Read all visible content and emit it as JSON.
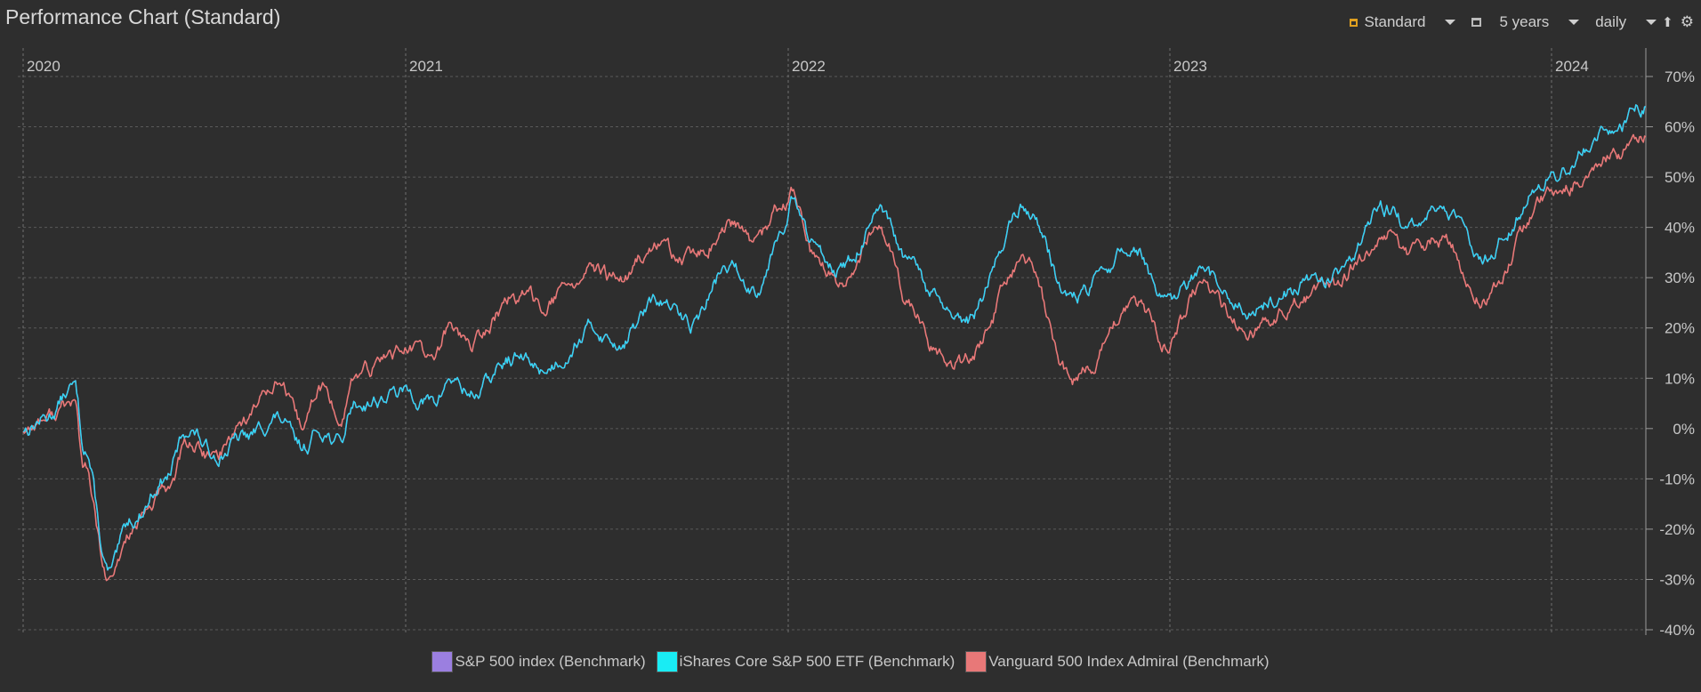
{
  "title": "Performance Chart (Standard)",
  "toolbar": {
    "chart_type_label": "Standard",
    "period_label": "5 years",
    "interval_label": "daily",
    "chart_type_icon": "chart-type-icon",
    "calendar_icon": "calendar-icon",
    "export_icon": "export-icon",
    "settings_icon": "gear-icon",
    "chart_type_icon_color": "#e0a020"
  },
  "chart_data": {
    "type": "line",
    "title": "Performance Chart (Standard)",
    "x_range": [
      "2020-01-01",
      "2024-03-31"
    ],
    "x_tick_labels": [
      "2020",
      "2021",
      "2022",
      "2023",
      "2024"
    ],
    "x_tick_dates": [
      "2020-01-01",
      "2021-01-01",
      "2022-01-01",
      "2023-01-01",
      "2024-01-01"
    ],
    "ylim": [
      -40,
      70
    ],
    "y_ticks": [
      -40,
      -30,
      -20,
      -10,
      0,
      10,
      20,
      30,
      40,
      50,
      60,
      70
    ],
    "y_tick_labels": [
      "-40%",
      "-30%",
      "-20%",
      "-10%",
      "0%",
      "10%",
      "20%",
      "30%",
      "40%",
      "50%",
      "60%",
      "70%"
    ],
    "y_axis_position": "right",
    "grid": true,
    "legend_position": "bottom-center",
    "series": [
      {
        "name": "S&P 500 index (Benchmark)",
        "color": "#9b7fe0",
        "points": [
          [
            "2020-01-01",
            0
          ],
          [
            "2020-01-20",
            2
          ],
          [
            "2020-02-19",
            8
          ],
          [
            "2020-02-28",
            -3
          ],
          [
            "2020-03-23",
            -29
          ],
          [
            "2020-04-15",
            -18
          ],
          [
            "2020-05-15",
            -10
          ],
          [
            "2020-06-08",
            0
          ],
          [
            "2020-06-30",
            -5
          ],
          [
            "2020-07-31",
            -2
          ],
          [
            "2020-08-31",
            2
          ],
          [
            "2020-09-23",
            -4
          ],
          [
            "2020-10-12",
            0
          ],
          [
            "2020-10-30",
            -3
          ],
          [
            "2020-11-12",
            5
          ],
          [
            "2020-12-31",
            7
          ],
          [
            "2021-01-29",
            5
          ],
          [
            "2021-02-12",
            10
          ],
          [
            "2021-03-04",
            7
          ],
          [
            "2021-04-16",
            14
          ],
          [
            "2021-05-12",
            12
          ],
          [
            "2021-06-30",
            20
          ],
          [
            "2021-07-19",
            17
          ],
          [
            "2021-08-31",
            25
          ],
          [
            "2021-09-30",
            21
          ],
          [
            "2021-11-05",
            32
          ],
          [
            "2021-11-30",
            28
          ],
          [
            "2021-12-31",
            42
          ],
          [
            "2022-01-04",
            45
          ],
          [
            "2022-01-27",
            36
          ],
          [
            "2022-02-23",
            32
          ],
          [
            "2022-03-29",
            42
          ],
          [
            "2022-04-29",
            32
          ],
          [
            "2022-05-20",
            26
          ],
          [
            "2022-06-16",
            20
          ],
          [
            "2022-08-16",
            44
          ],
          [
            "2022-09-30",
            26
          ],
          [
            "2022-11-30",
            36
          ],
          [
            "2022-12-28",
            24
          ],
          [
            "2023-01-31",
            30
          ],
          [
            "2023-03-13",
            24
          ],
          [
            "2023-05-31",
            30
          ],
          [
            "2023-07-31",
            44
          ],
          [
            "2023-08-18",
            39
          ],
          [
            "2023-09-15",
            44
          ],
          [
            "2023-10-27",
            35
          ],
          [
            "2023-12-29",
            50
          ],
          [
            "2024-02-29",
            60
          ],
          [
            "2024-03-31",
            64
          ]
        ]
      },
      {
        "name": "iShares Core S&P 500 ETF (Benchmark)",
        "color": "#19ecf4",
        "points": [
          [
            "2020-01-01",
            0
          ],
          [
            "2020-01-20",
            2
          ],
          [
            "2020-02-19",
            8
          ],
          [
            "2020-02-28",
            -3
          ],
          [
            "2020-03-23",
            -29
          ],
          [
            "2020-04-15",
            -18
          ],
          [
            "2020-05-15",
            -10
          ],
          [
            "2020-06-08",
            0
          ],
          [
            "2020-06-30",
            -5
          ],
          [
            "2020-07-31",
            -2
          ],
          [
            "2020-08-31",
            2
          ],
          [
            "2020-09-23",
            -4
          ],
          [
            "2020-10-12",
            0
          ],
          [
            "2020-10-30",
            -3
          ],
          [
            "2020-11-12",
            5
          ],
          [
            "2020-12-31",
            7
          ],
          [
            "2021-01-29",
            5
          ],
          [
            "2021-02-12",
            10
          ],
          [
            "2021-03-04",
            7
          ],
          [
            "2021-04-16",
            14
          ],
          [
            "2021-05-12",
            12
          ],
          [
            "2021-06-30",
            20
          ],
          [
            "2021-07-19",
            17
          ],
          [
            "2021-08-31",
            25
          ],
          [
            "2021-09-30",
            21
          ],
          [
            "2021-11-05",
            32
          ],
          [
            "2021-11-30",
            28
          ],
          [
            "2021-12-31",
            42
          ],
          [
            "2022-01-04",
            45
          ],
          [
            "2022-01-27",
            36
          ],
          [
            "2022-02-23",
            32
          ],
          [
            "2022-03-29",
            42
          ],
          [
            "2022-04-29",
            32
          ],
          [
            "2022-05-20",
            26
          ],
          [
            "2022-06-16",
            20
          ],
          [
            "2022-08-16",
            44
          ],
          [
            "2022-09-30",
            26
          ],
          [
            "2022-11-30",
            36
          ],
          [
            "2022-12-28",
            24
          ],
          [
            "2023-01-31",
            30
          ],
          [
            "2023-03-13",
            24
          ],
          [
            "2023-05-31",
            30
          ],
          [
            "2023-07-31",
            44
          ],
          [
            "2023-08-18",
            39
          ],
          [
            "2023-09-15",
            44
          ],
          [
            "2023-10-27",
            35
          ],
          [
            "2023-12-29",
            50
          ],
          [
            "2024-02-29",
            60
          ],
          [
            "2024-03-31",
            64
          ]
        ]
      },
      {
        "name": "Vanguard 500 Index Admiral (Benchmark)",
        "color": "#e87878",
        "points": [
          [
            "2020-01-01",
            0
          ],
          [
            "2020-01-20",
            2
          ],
          [
            "2020-02-19",
            5
          ],
          [
            "2020-02-28",
            -8
          ],
          [
            "2020-03-23",
            -31
          ],
          [
            "2020-04-15",
            -20
          ],
          [
            "2020-05-15",
            -13
          ],
          [
            "2020-06-08",
            -3
          ],
          [
            "2020-06-30",
            -6
          ],
          [
            "2020-07-31",
            2
          ],
          [
            "2020-08-31",
            10
          ],
          [
            "2020-09-23",
            0
          ],
          [
            "2020-10-12",
            8
          ],
          [
            "2020-10-30",
            2
          ],
          [
            "2020-11-12",
            10
          ],
          [
            "2020-12-31",
            16
          ],
          [
            "2021-01-29",
            14
          ],
          [
            "2021-02-12",
            20
          ],
          [
            "2021-03-04",
            17
          ],
          [
            "2021-04-16",
            26
          ],
          [
            "2021-05-12",
            25
          ],
          [
            "2021-06-30",
            31
          ],
          [
            "2021-07-19",
            29
          ],
          [
            "2021-08-31",
            36
          ],
          [
            "2021-09-30",
            33
          ],
          [
            "2021-11-05",
            40
          ],
          [
            "2021-11-30",
            37
          ],
          [
            "2021-12-31",
            45
          ],
          [
            "2022-01-04",
            47
          ],
          [
            "2022-01-27",
            33
          ],
          [
            "2022-02-23",
            28
          ],
          [
            "2022-03-29",
            40
          ],
          [
            "2022-04-29",
            25
          ],
          [
            "2022-05-20",
            16
          ],
          [
            "2022-06-16",
            13
          ],
          [
            "2022-08-16",
            32
          ],
          [
            "2022-09-30",
            10
          ],
          [
            "2022-11-30",
            24
          ],
          [
            "2022-12-28",
            17
          ],
          [
            "2023-01-31",
            28
          ],
          [
            "2023-03-13",
            20
          ],
          [
            "2023-05-31",
            27
          ],
          [
            "2023-07-31",
            40
          ],
          [
            "2023-08-18",
            35
          ],
          [
            "2023-09-15",
            38
          ],
          [
            "2023-10-27",
            27
          ],
          [
            "2023-12-29",
            46
          ],
          [
            "2024-02-29",
            55
          ],
          [
            "2024-03-31",
            58
          ]
        ]
      }
    ]
  }
}
